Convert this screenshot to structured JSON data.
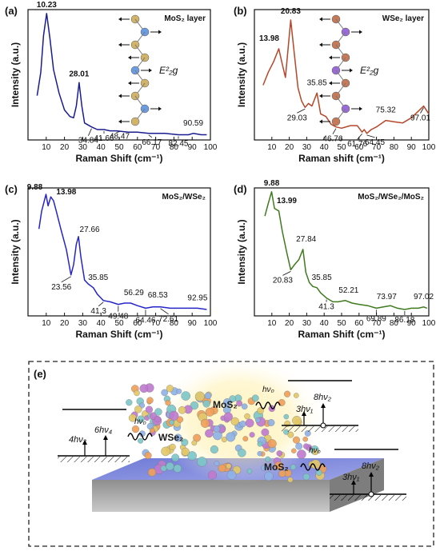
{
  "figure": {
    "panels": [
      {
        "letter": "(a)",
        "title": "MoS₂ layer",
        "xlabel": "Raman Shift (cm⁻¹)",
        "ylabel": "Intensity (a.u.)",
        "mode_label": "E²₂g",
        "color": "#1a1d8f",
        "peak_labels": [
          "10.23",
          "28.01",
          "34.84",
          "41.66",
          "48.47",
          "66.17",
          "82.45",
          "90.59"
        ]
      },
      {
        "letter": "(b)",
        "title": "WSe₂ layer",
        "xlabel": "Raman shift (cm⁻¹)",
        "ylabel": "Intensity (a.u.)",
        "mode_label": "E²₂g",
        "color": "#b5472b",
        "peak_labels": [
          "20.83",
          "13.98",
          "29.03",
          "35.85",
          "46.76",
          "61.76",
          "64.45",
          "75.32",
          "97.01"
        ]
      },
      {
        "letter": "(c)",
        "title": "MoS₂/WSe₂",
        "xlabel": "Raman Shift (cm⁻¹)",
        "ylabel": "Intensity (a.u.)",
        "color": "#2626c8",
        "peak_labels": [
          "9.88",
          "13.98",
          "27.66",
          "23.56",
          "35.85",
          "41.3",
          "49.48",
          "56.29",
          "64.46",
          "68.53",
          "72.61",
          "92.95"
        ]
      },
      {
        "letter": "(d)",
        "title": "MoS₂/WSe₂/MoS₂",
        "xlabel": "Raman Shift (cm⁻¹)",
        "ylabel": "Intensity (a.u.)",
        "color": "#3f7a1e",
        "peak_labels": [
          "9.88",
          "13.99",
          "27.84",
          "20.83",
          "35.85",
          "41.3",
          "52.21",
          "69.89",
          "73.97",
          "86.18",
          "97.02"
        ]
      }
    ],
    "schematic": {
      "letter": "(e)",
      "label_mos2_top": "MoS₂",
      "label_mos2_right": "MoS₂",
      "label_wse2": "WSe₂",
      "photon_in": "hν₀",
      "left_levels": [
        "4hν₃",
        "6hν₄"
      ],
      "right_levels": [
        "3hν₁",
        "8hν₂"
      ]
    }
  },
  "chart_data": [
    {
      "type": "line",
      "title": "MoS₂ layer",
      "xlabel": "Raman Shift (cm⁻¹)",
      "ylabel": "Intensity (a.u.)",
      "xlim": [
        0,
        100
      ],
      "xticks": [
        10,
        20,
        30,
        40,
        50,
        60,
        70,
        80,
        90,
        100
      ],
      "ylim": [
        0,
        100
      ],
      "series": [
        {
          "x": [
            5,
            7,
            8.5,
            10.23,
            12,
            14,
            17,
            20,
            23,
            25,
            26.5,
            28.01,
            29.5,
            31,
            34.84,
            38,
            41.66,
            45,
            48.47,
            55,
            60,
            66.17,
            70,
            75,
            82.45,
            88,
            90.59,
            95,
            98
          ],
          "y": [
            34,
            52,
            80,
            97,
            78,
            54,
            36,
            23,
            18,
            17,
            26,
            44,
            26,
            13,
            10,
            8,
            8,
            7,
            7,
            6,
            6,
            5,
            5,
            5,
            4,
            4,
            5,
            4,
            4
          ]
        }
      ],
      "peaks": [
        {
          "x": 10.23,
          "label": "10.23"
        },
        {
          "x": 28.01,
          "label": "28.01"
        },
        {
          "x": 34.84,
          "label": "34.84"
        },
        {
          "x": 41.66,
          "label": "41.66"
        },
        {
          "x": 48.47,
          "label": "48.47"
        },
        {
          "x": 66.17,
          "label": "66.17"
        },
        {
          "x": 82.45,
          "label": "82.45"
        },
        {
          "x": 90.59,
          "label": "90.59"
        }
      ]
    },
    {
      "type": "line",
      "title": "WSe₂ layer",
      "xlabel": "Raman shift (cm⁻¹)",
      "ylabel": "Intensity (a.u.)",
      "xlim": [
        0,
        100
      ],
      "xticks": [
        10,
        20,
        30,
        40,
        50,
        60,
        70,
        80,
        90,
        100
      ],
      "ylim": [
        0,
        100
      ],
      "series": [
        {
          "x": [
            5,
            8,
            11,
            13.98,
            16,
            17.8,
            20.83,
            23,
            25,
            27,
            29.03,
            31,
            33,
            35.85,
            38,
            41,
            44,
            46.76,
            50,
            55,
            59,
            61.76,
            63,
            64.45,
            67,
            70,
            75.32,
            80,
            85,
            90,
            94,
            97.01,
            100
          ],
          "y": [
            42,
            52,
            60,
            70,
            58,
            48,
            92,
            65,
            40,
            30,
            25,
            28,
            26,
            36,
            20,
            18,
            12,
            10,
            9,
            11,
            11,
            6,
            8,
            5,
            8,
            10,
            15,
            14,
            13,
            17,
            22,
            26,
            20
          ]
        }
      ],
      "peaks": [
        {
          "x": 20.83,
          "label": "20.83"
        },
        {
          "x": 13.98,
          "label": "13.98"
        },
        {
          "x": 29.03,
          "label": "29.03"
        },
        {
          "x": 35.85,
          "label": "35.85"
        },
        {
          "x": 46.76,
          "label": "46.76"
        },
        {
          "x": 61.76,
          "label": "61.76"
        },
        {
          "x": 64.45,
          "label": "64.45"
        },
        {
          "x": 75.32,
          "label": "75.32"
        },
        {
          "x": 97.01,
          "label": "97.01"
        }
      ]
    },
    {
      "type": "line",
      "title": "MoS₂/WSe₂",
      "xlabel": "Raman Shift (cm⁻¹)",
      "ylabel": "Intensity (a.u.)",
      "xlim": [
        0,
        100
      ],
      "xticks": [
        10,
        20,
        30,
        40,
        50,
        60,
        70,
        80,
        90,
        100
      ],
      "ylim": [
        0,
        100
      ],
      "series": [
        {
          "x": [
            6,
            7.5,
            9.88,
            11,
            12.5,
            13.98,
            15.5,
            18,
            21,
            23.56,
            25,
            26.5,
            27.66,
            29,
            31,
            33,
            35.85,
            38,
            41.3,
            45,
            49.48,
            53,
            56.29,
            60,
            64.46,
            68.53,
            72.61,
            78,
            85,
            92.95,
            98
          ],
          "y": [
            68,
            82,
            95,
            86,
            93,
            90,
            82,
            68,
            52,
            32,
            40,
            56,
            62,
            46,
            28,
            25,
            22,
            17,
            12,
            11,
            9,
            10,
            10,
            8,
            6,
            7,
            7,
            6,
            6,
            6,
            5
          ]
        }
      ],
      "peaks": [
        {
          "x": 9.88,
          "label": "9.88"
        },
        {
          "x": 13.98,
          "label": "13.98"
        },
        {
          "x": 27.66,
          "label": "27.66"
        },
        {
          "x": 23.56,
          "label": "23.56"
        },
        {
          "x": 35.85,
          "label": "35.85"
        },
        {
          "x": 41.3,
          "label": "41.3"
        },
        {
          "x": 49.48,
          "label": "49.48"
        },
        {
          "x": 56.29,
          "label": "56.29"
        },
        {
          "x": 64.46,
          "label": "64.46"
        },
        {
          "x": 68.53,
          "label": "68.53"
        },
        {
          "x": 72.61,
          "label": "72.61"
        },
        {
          "x": 92.95,
          "label": "92.95"
        }
      ]
    },
    {
      "type": "line",
      "title": "MoS₂/WSe₂/MoS₂",
      "xlabel": "Raman Shift (cm⁻¹)",
      "ylabel": "Intensity (a.u.)",
      "xlim": [
        0,
        100
      ],
      "xticks": [
        10,
        20,
        30,
        40,
        50,
        60,
        70,
        80,
        90,
        100
      ],
      "ylim": [
        0,
        100
      ],
      "series": [
        {
          "x": [
            6,
            8,
            9.88,
            11.5,
            13.99,
            16,
            18.5,
            20.83,
            23,
            25.5,
            27.84,
            29.5,
            31.5,
            33.5,
            35.85,
            38,
            41.3,
            45,
            48,
            52.21,
            56,
            60,
            65,
            69.89,
            73.97,
            78,
            82,
            86.18,
            90,
            94,
            97.02,
            99
          ],
          "y": [
            78,
            88,
            97,
            84,
            82,
            66,
            50,
            36,
            40,
            44,
            52,
            34,
            26,
            23,
            22,
            18,
            14,
            11,
            11,
            12,
            10,
            9,
            8,
            6,
            7,
            8,
            6,
            5,
            6,
            6,
            7,
            6
          ]
        }
      ],
      "peaks": [
        {
          "x": 9.88,
          "label": "9.88"
        },
        {
          "x": 13.99,
          "label": "13.99"
        },
        {
          "x": 27.84,
          "label": "27.84"
        },
        {
          "x": 20.83,
          "label": "20.83"
        },
        {
          "x": 35.85,
          "label": "35.85"
        },
        {
          "x": 41.3,
          "label": "41.3"
        },
        {
          "x": 52.21,
          "label": "52.21"
        },
        {
          "x": 69.89,
          "label": "69.89"
        },
        {
          "x": 73.97,
          "label": "73.97"
        },
        {
          "x": 86.18,
          "label": "86.18"
        },
        {
          "x": 97.02,
          "label": "97.02"
        }
      ]
    }
  ]
}
